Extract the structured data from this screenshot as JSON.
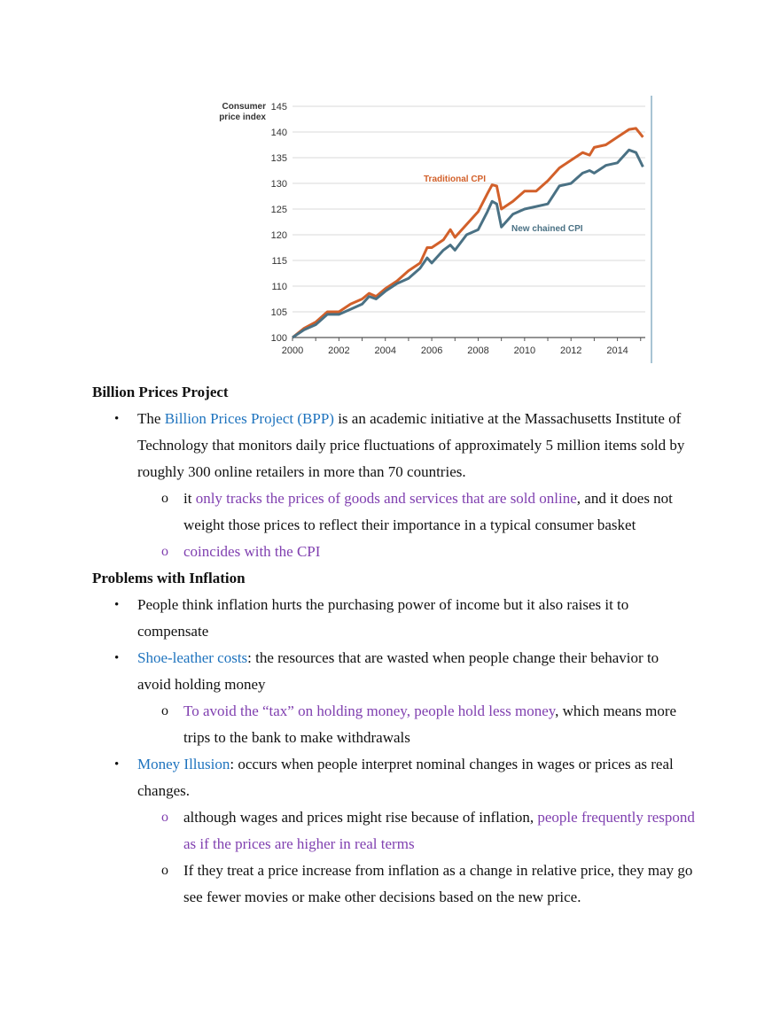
{
  "chart_data": {
    "type": "line",
    "ylabel": "Consumer\nprice index",
    "ylim": [
      100,
      145
    ],
    "yticks": [
      100,
      105,
      110,
      115,
      120,
      125,
      130,
      135,
      140,
      145
    ],
    "xlim": [
      2000,
      2015.2
    ],
    "xticks": [
      2000,
      2002,
      2004,
      2006,
      2008,
      2010,
      2012,
      2014
    ],
    "grid": true,
    "series": [
      {
        "name": "Traditional CPI",
        "color": "#d2602a",
        "points": [
          [
            2000,
            100
          ],
          [
            2000.5,
            101.8
          ],
          [
            2001,
            103
          ],
          [
            2001.5,
            105
          ],
          [
            2002,
            105
          ],
          [
            2002.5,
            106.5
          ],
          [
            2003,
            107.5
          ],
          [
            2003.3,
            108.6
          ],
          [
            2003.6,
            108
          ],
          [
            2004,
            109.5
          ],
          [
            2004.5,
            111
          ],
          [
            2005,
            113
          ],
          [
            2005.5,
            114.5
          ],
          [
            2005.8,
            117.5
          ],
          [
            2006,
            117.5
          ],
          [
            2006.5,
            119
          ],
          [
            2006.8,
            121
          ],
          [
            2007,
            119.5
          ],
          [
            2007.5,
            122
          ],
          [
            2008,
            124.5
          ],
          [
            2008.4,
            128
          ],
          [
            2008.6,
            129.7
          ],
          [
            2008.8,
            129.5
          ],
          [
            2009,
            125
          ],
          [
            2009.5,
            126.5
          ],
          [
            2010,
            128.5
          ],
          [
            2010.5,
            128.5
          ],
          [
            2011,
            130.5
          ],
          [
            2011.5,
            133
          ],
          [
            2012,
            134.5
          ],
          [
            2012.5,
            136
          ],
          [
            2012.8,
            135.5
          ],
          [
            2013,
            137
          ],
          [
            2013.5,
            137.5
          ],
          [
            2014,
            139
          ],
          [
            2014.5,
            140.5
          ],
          [
            2014.8,
            140.7
          ],
          [
            2015.1,
            139
          ]
        ]
      },
      {
        "name": "New chained CPI",
        "color": "#4a7184",
        "points": [
          [
            2000,
            100
          ],
          [
            2000.5,
            101.5
          ],
          [
            2001,
            102.5
          ],
          [
            2001.5,
            104.5
          ],
          [
            2002,
            104.5
          ],
          [
            2002.5,
            105.5
          ],
          [
            2003,
            106.5
          ],
          [
            2003.3,
            108
          ],
          [
            2003.6,
            107.5
          ],
          [
            2004,
            109
          ],
          [
            2004.5,
            110.5
          ],
          [
            2005,
            111.5
          ],
          [
            2005.5,
            113.5
          ],
          [
            2005.8,
            115.5
          ],
          [
            2006,
            114.5
          ],
          [
            2006.5,
            117
          ],
          [
            2006.8,
            118
          ],
          [
            2007,
            117
          ],
          [
            2007.5,
            120
          ],
          [
            2008,
            121
          ],
          [
            2008.4,
            124.5
          ],
          [
            2008.6,
            126.5
          ],
          [
            2008.8,
            126
          ],
          [
            2009,
            121.5
          ],
          [
            2009.5,
            124
          ],
          [
            2010,
            125
          ],
          [
            2010.5,
            125.5
          ],
          [
            2011,
            126
          ],
          [
            2011.5,
            129.5
          ],
          [
            2012,
            130
          ],
          [
            2012.5,
            132
          ],
          [
            2012.8,
            132.5
          ],
          [
            2013,
            132
          ],
          [
            2013.5,
            133.5
          ],
          [
            2014,
            134
          ],
          [
            2014.5,
            136.5
          ],
          [
            2014.8,
            136
          ],
          [
            2015.1,
            133.2
          ]
        ]
      }
    ]
  },
  "doc": {
    "section1_title": "Billion Prices Project",
    "b1_pre": "The ",
    "b1_link": "Billion Prices Project (BPP)",
    "b1_post": " is an academic initiative at the Massachusetts Institute of Technology that monitors daily price fluctuations of approximately 5 million items sold by roughly 300 online retailers in more than 70 countries.",
    "b1_s1_pre": "it ",
    "b1_s1_hl": "only tracks the prices of goods and services that are sold online",
    "b1_s1_post": ", and it does not weight those prices to reflect their importance in a typical consumer basket",
    "b1_s2": "coincides with the CPI",
    "section2_title": "Problems with Inflation",
    "p1": "People think inflation hurts the purchasing power of income but it also raises it to compensate",
    "p2_term": "Shoe-leather costs",
    "p2_rest": ": the resources that are wasted when people change their behavior to avoid holding money",
    "p2_s1_hl": "To avoid the “tax” on holding money, people hold less money",
    "p2_s1_post": ", which means more trips to the bank to make withdrawals",
    "p3_term": "Money Illusion",
    "p3_rest": ": occurs when people interpret nominal changes in wages or prices as real changes.",
    "p3_s1_pre": "although wages and prices might rise because of inflation, ",
    "p3_s1_hl": "people frequently respond as if the prices are higher in real terms",
    "p3_s2": "If they treat a price increase from inflation as a change in relative price, they may go see fewer movies or make other decisions based on the new price."
  },
  "glyphs": {
    "bullet": "•",
    "sub_bullet": "o"
  }
}
